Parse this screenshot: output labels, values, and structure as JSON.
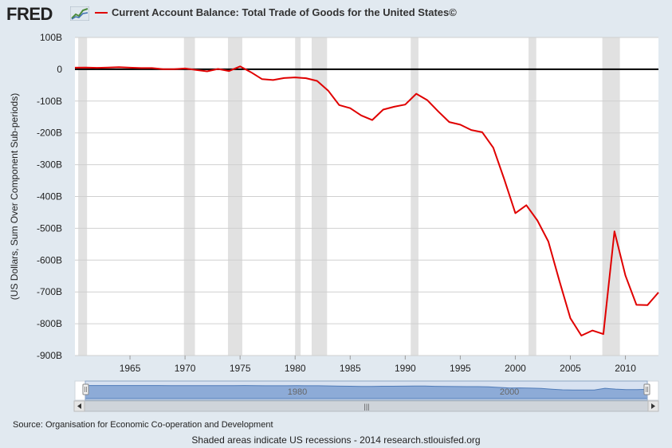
{
  "header": {
    "logo_text": "FRED",
    "title": "Current Account Balance: Total Trade of Goods for the United States©"
  },
  "footer": {
    "source": "Source: Organisation for Economic Co-operation and Development",
    "note": "Shaded areas indicate US recessions - 2014 research.stlouisfed.org"
  },
  "colors": {
    "series": "#e00000",
    "recession": "#e1e1e1",
    "navigator_fill": "#9bb6dc",
    "background": "#e1e9f0"
  },
  "navigator": {
    "labels": [
      "1980",
      "2000"
    ],
    "scroll_grip": "|||"
  },
  "chart_data": {
    "type": "line",
    "ylabel": "(US Dollars, Sum Over Component Sub-periods)",
    "xlim": [
      1960,
      2013
    ],
    "ylim": [
      -900,
      100
    ],
    "y_ticks": [
      "100B",
      "0",
      "-100B",
      "-200B",
      "-300B",
      "-400B",
      "-500B",
      "-600B",
      "-700B",
      "-800B",
      "-900B"
    ],
    "y_tick_values": [
      100,
      0,
      -100,
      -200,
      -300,
      -400,
      -500,
      -600,
      -700,
      -800,
      -900
    ],
    "x_ticks": [
      "1965",
      "1970",
      "1975",
      "1980",
      "1985",
      "1990",
      "1995",
      "2000",
      "2005",
      "2010"
    ],
    "x_tick_values": [
      1965,
      1970,
      1975,
      1980,
      1985,
      1990,
      1995,
      2000,
      2005,
      2010
    ],
    "grid": true,
    "recessions": [
      [
        1960.3,
        1961.1
      ],
      [
        1969.9,
        1970.9
      ],
      [
        1973.9,
        1975.2
      ],
      [
        1980.0,
        1980.5
      ],
      [
        1981.5,
        1982.9
      ],
      [
        1990.5,
        1991.2
      ],
      [
        2001.2,
        2001.9
      ],
      [
        2007.9,
        2009.5
      ]
    ],
    "series": [
      {
        "x": [
          1960,
          1961,
          1962,
          1963,
          1964,
          1965,
          1966,
          1967,
          1968,
          1969,
          1970,
          1971,
          1972,
          1973,
          1974,
          1975,
          1976,
          1977,
          1978,
          1979,
          1980,
          1981,
          1982,
          1983,
          1984,
          1985,
          1986,
          1987,
          1988,
          1989,
          1990,
          1991,
          1992,
          1993,
          1994,
          1995,
          1996,
          1997,
          1998,
          1999,
          2000,
          2001,
          2002,
          2003,
          2004,
          2005,
          2006,
          2007,
          2008,
          2009,
          2010,
          2011,
          2012,
          2013
        ],
        "values": [
          4.9,
          5.6,
          4.5,
          5.2,
          6.8,
          4.9,
          3.8,
          3.8,
          0.6,
          0.6,
          2.6,
          -2.3,
          -6.4,
          0.9,
          -5.5,
          8.9,
          -9.5,
          -31.1,
          -33.9,
          -27.6,
          -25.5,
          -28.0,
          -36.5,
          -67.1,
          -112.5,
          -122.2,
          -145.1,
          -159.6,
          -126.9,
          -117.7,
          -111.0,
          -76.9,
          -96.9,
          -132.5,
          -165.8,
          -174.2,
          -191.0,
          -198.1,
          -246.7,
          -346.0,
          -452.4,
          -427.2,
          -475.2,
          -541.6,
          -664.8,
          -782.8,
          -837.3,
          -821.2,
          -832.5,
          -509.7,
          -648.7,
          -740.6,
          -741.5,
          -701.7
        ]
      }
    ]
  }
}
